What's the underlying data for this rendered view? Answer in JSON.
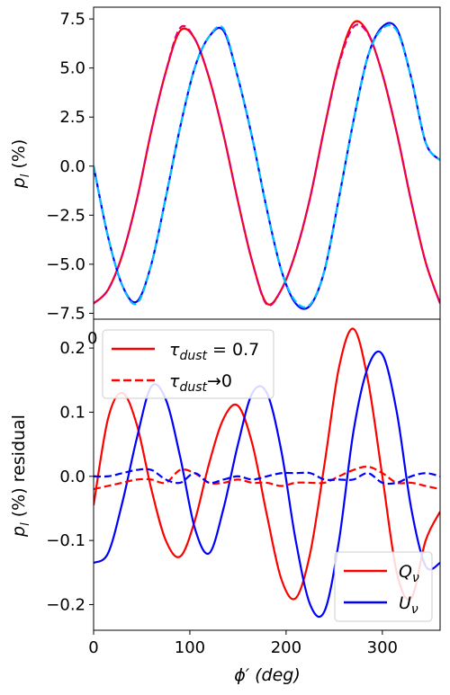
{
  "colors": {
    "red": "#ff0000",
    "blue": "#0000ff",
    "cyan": "#00bfff",
    "magenta": "#e0006e",
    "legend_border": "#cccccc"
  },
  "chart_data": [
    {
      "type": "line",
      "panel": "top",
      "xlabel": "",
      "ylabel_parts": {
        "base": "p",
        "sub": "l",
        "rest": " (%)"
      },
      "xlim": [
        0,
        360
      ],
      "ylim": [
        -7.8,
        8.1
      ],
      "yticks": [
        -7.5,
        -5.0,
        -2.5,
        0.0,
        2.5,
        5.0,
        7.5
      ],
      "ytick_labels": [
        "−7.5",
        "−5.0",
        "−2.5",
        "0.0",
        "2.5",
        "5.0",
        "7.5"
      ],
      "x": [
        0,
        15,
        30,
        45,
        60,
        75,
        90,
        105,
        120,
        135,
        150,
        165,
        180,
        195,
        210,
        225,
        240,
        255,
        270,
        285,
        300,
        315,
        330,
        345,
        360
      ],
      "series": [
        {
          "key": "Q",
          "style": "solid",
          "color": "red",
          "values": [
            -7.0,
            -6.3,
            -4.5,
            -1.7,
            1.8,
            4.8,
            6.9,
            6.5,
            4.5,
            1.6,
            -1.8,
            -4.9,
            -7.0,
            -6.3,
            -4.4,
            -1.6,
            2.0,
            5.3,
            7.3,
            6.8,
            4.7,
            1.7,
            -1.8,
            -4.9,
            -7.0
          ]
        },
        {
          "key": "Q",
          "style": "dashed",
          "color": "magenta",
          "values": [
            -7.0,
            -6.3,
            -4.5,
            -1.7,
            1.8,
            4.8,
            7.05,
            6.5,
            4.5,
            1.6,
            -1.8,
            -4.9,
            -7.05,
            -6.3,
            -4.4,
            -1.6,
            2.0,
            5.2,
            7.1,
            6.75,
            4.7,
            1.7,
            -1.8,
            -4.9,
            -7.0
          ]
        },
        {
          "key": "U",
          "style": "solid",
          "color": "blue",
          "values": [
            0.0,
            -3.6,
            -6.1,
            -6.9,
            -5.0,
            -1.6,
            2.0,
            5.0,
            6.6,
            6.9,
            4.5,
            1.4,
            -2.2,
            -5.3,
            -7.0,
            -7.1,
            -5.3,
            -1.6,
            2.3,
            5.6,
            7.1,
            7.0,
            4.5,
            1.2,
            0.3
          ]
        },
        {
          "key": "U",
          "style": "dashed",
          "color": "cyan",
          "values": [
            0.0,
            -3.6,
            -6.1,
            -7.0,
            -5.0,
            -1.6,
            2.0,
            5.0,
            6.6,
            7.0,
            4.5,
            1.4,
            -2.2,
            -5.3,
            -6.9,
            -7.05,
            -5.3,
            -1.6,
            2.3,
            5.6,
            7.0,
            6.9,
            4.5,
            1.2,
            0.3
          ]
        }
      ],
      "partial_tick_fragment": "0"
    },
    {
      "type": "line",
      "panel": "bottom",
      "xlabel_parts": {
        "prefix": "ϕ′ (",
        "italic": "deg",
        "suffix": ")"
      },
      "ylabel_parts": {
        "base": "p",
        "sub": "l",
        "rest": " (%) residual"
      },
      "xlim": [
        0,
        360
      ],
      "ylim": [
        -0.24,
        0.245
      ],
      "xticks": [
        0,
        100,
        200,
        300
      ],
      "xtick_labels": [
        "0",
        "100",
        "200",
        "300"
      ],
      "yticks": [
        -0.2,
        -0.1,
        0.0,
        0.1,
        0.2
      ],
      "ytick_labels": [
        "−0.2",
        "−0.1",
        "0.0",
        "0.1",
        "0.2"
      ],
      "x": [
        0,
        15,
        30,
        45,
        60,
        75,
        90,
        105,
        120,
        135,
        150,
        165,
        180,
        195,
        210,
        225,
        240,
        255,
        270,
        285,
        300,
        315,
        330,
        345,
        360
      ],
      "series": [
        {
          "key": "Q",
          "style": "solid",
          "color": "red",
          "values": [
            -0.045,
            0.09,
            0.13,
            0.08,
            -0.02,
            -0.1,
            -0.125,
            -0.07,
            0.02,
            0.09,
            0.11,
            0.05,
            -0.06,
            -0.16,
            -0.19,
            -0.12,
            0.02,
            0.17,
            0.23,
            0.15,
            0.0,
            -0.15,
            -0.19,
            -0.1,
            -0.055
          ]
        },
        {
          "key": "U",
          "style": "solid",
          "color": "blue",
          "values": [
            -0.135,
            -0.12,
            -0.04,
            0.06,
            0.14,
            0.12,
            0.03,
            -0.08,
            -0.12,
            -0.05,
            0.05,
            0.13,
            0.13,
            0.04,
            -0.1,
            -0.2,
            -0.21,
            -0.1,
            0.07,
            0.17,
            0.19,
            0.1,
            -0.05,
            -0.14,
            -0.135
          ]
        },
        {
          "key": "Q",
          "style": "dashed",
          "color": "red",
          "values": [
            -0.02,
            -0.015,
            -0.01,
            -0.005,
            -0.005,
            -0.01,
            0.01,
            0.005,
            -0.01,
            -0.01,
            -0.005,
            -0.01,
            -0.01,
            -0.015,
            -0.01,
            -0.01,
            -0.01,
            0.0,
            0.01,
            0.015,
            0.005,
            -0.01,
            -0.01,
            -0.015,
            -0.02
          ]
        },
        {
          "key": "U",
          "style": "dashed",
          "color": "blue",
          "values": [
            0.0,
            0.0,
            0.005,
            0.01,
            0.01,
            -0.005,
            -0.01,
            0.005,
            -0.01,
            -0.005,
            0.0,
            -0.005,
            0.0,
            0.005,
            0.005,
            0.005,
            -0.005,
            -0.005,
            -0.005,
            0.005,
            -0.01,
            -0.01,
            0.0,
            0.005,
            0.0
          ]
        }
      ],
      "legend_tau": [
        {
          "style": "solid",
          "color": "red",
          "tau": "τ",
          "sub": "dust",
          "rest": " = 0.7"
        },
        {
          "style": "dashed",
          "color": "red",
          "tau": "τ",
          "sub": "dust",
          "rest": "→0"
        }
      ],
      "legend_param": [
        {
          "color": "red",
          "base": "Q",
          "sub": "ν"
        },
        {
          "color": "blue",
          "base": "U",
          "sub": "ν"
        }
      ],
      "legend_placement": [
        "top-left",
        "bottom-right"
      ]
    }
  ]
}
